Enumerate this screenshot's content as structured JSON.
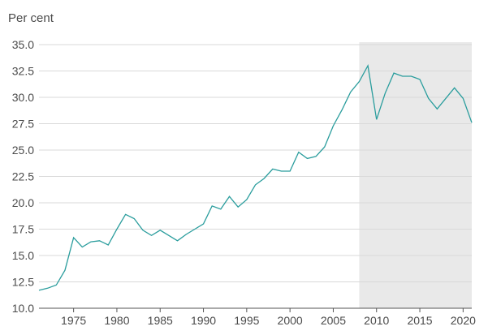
{
  "chart_data": {
    "type": "line",
    "ylabel": "Per cent",
    "ylim": [
      10.0,
      35.0
    ],
    "xlim": [
      1971,
      2021
    ],
    "y_ticks": [
      "10.0",
      "12.5",
      "15.0",
      "17.5",
      "20.0",
      "22.5",
      "25.0",
      "27.5",
      "30.0",
      "32.5",
      "35.0"
    ],
    "x_ticks": [
      "1975",
      "1980",
      "1985",
      "1990",
      "1995",
      "2000",
      "2005",
      "2010",
      "2015",
      "2020"
    ],
    "grid": true,
    "shaded_region": [
      2008,
      2021
    ],
    "series": [
      {
        "name": "Per cent",
        "color": "#2a9d9d",
        "x": [
          1971,
          1972,
          1973,
          1974,
          1975,
          1976,
          1977,
          1978,
          1979,
          1980,
          1981,
          1982,
          1983,
          1984,
          1985,
          1986,
          1987,
          1988,
          1989,
          1990,
          1991,
          1992,
          1993,
          1994,
          1995,
          1996,
          1997,
          1998,
          1999,
          2000,
          2001,
          2002,
          2003,
          2004,
          2005,
          2006,
          2007,
          2008,
          2009,
          2010,
          2011,
          2012,
          2013,
          2014,
          2015,
          2016,
          2017,
          2018,
          2019,
          2020,
          2021
        ],
        "values": [
          11.7,
          11.9,
          12.2,
          13.6,
          16.7,
          15.8,
          16.3,
          16.4,
          16.0,
          17.5,
          18.9,
          18.5,
          17.4,
          16.9,
          17.4,
          16.9,
          16.4,
          17.0,
          17.5,
          18.0,
          19.7,
          19.4,
          20.6,
          19.6,
          20.3,
          21.7,
          22.3,
          23.2,
          23.0,
          23.0,
          24.8,
          24.2,
          24.4,
          25.3,
          27.3,
          28.8,
          30.5,
          31.5,
          33.0,
          27.9,
          30.4,
          32.3,
          32.0,
          32.0,
          31.7,
          29.9,
          28.9,
          29.9,
          30.9,
          29.9,
          27.6
        ]
      }
    ]
  }
}
